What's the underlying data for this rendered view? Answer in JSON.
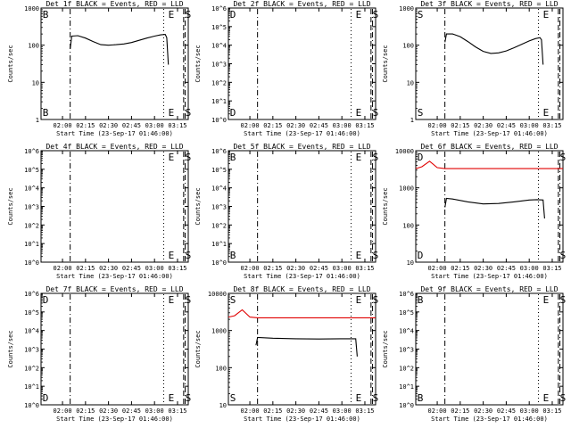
{
  "x_tick_labels": [
    "02:00",
    "02:15",
    "02:30",
    "02:45",
    "03:00",
    "03:15"
  ],
  "xlabel": "Start Time (23-Sep-17 01:46:00)",
  "ylabel": "Counts/sec",
  "colors": {
    "events": "#000000",
    "lld": "#e00000"
  },
  "chart_data": [
    {
      "type": "line",
      "title": "Det 1f BLACK = Events, RED = LLD",
      "ylog": true,
      "ylim": [
        1,
        1000
      ],
      "y_tick_labels": [
        "1000",
        "100",
        "10",
        "1"
      ],
      "markers": [
        {
          "label": "B",
          "x": "01:47"
        },
        {
          "label": "E",
          "x": "03:09"
        },
        {
          "label": "S",
          "x": "03:20"
        }
      ],
      "series": [
        {
          "color": "black",
          "x": [
            "02:05",
            "02:06",
            "02:10",
            "02:15",
            "02:20",
            "02:25",
            "02:30",
            "02:35",
            "02:40",
            "02:45",
            "02:50",
            "02:55",
            "03:00",
            "03:04",
            "03:07",
            "03:08",
            "03:09"
          ],
          "y": [
            80,
            175,
            180,
            155,
            125,
            103,
            100,
            103,
            108,
            118,
            135,
            155,
            175,
            190,
            195,
            160,
            30
          ]
        }
      ]
    },
    {
      "type": "line",
      "title": "Det 2f BLACK = Events, RED = LLD",
      "ylog": true,
      "ylim": [
        1,
        1000000
      ],
      "y_tick_labels": [
        "10^6",
        "10^5",
        "10^4",
        "10^3",
        "10^2",
        "10^1",
        "10^0"
      ],
      "markers": [
        {
          "label": "D",
          "x": "01:47"
        },
        {
          "label": "E",
          "x": "03:09"
        },
        {
          "label": "S",
          "x": "03:20"
        }
      ],
      "series": []
    },
    {
      "type": "line",
      "title": "Det 3f BLACK = Events, RED = LLD",
      "ylog": true,
      "ylim": [
        1,
        1000
      ],
      "y_tick_labels": [
        "1000",
        "100",
        "10",
        "1"
      ],
      "markers": [
        {
          "label": "S",
          "x": "01:47"
        },
        {
          "label": "E",
          "x": "03:09"
        }
      ],
      "series": [
        {
          "color": "black",
          "x": [
            "02:05",
            "02:06",
            "02:10",
            "02:15",
            "02:20",
            "02:25",
            "02:30",
            "02:35",
            "02:40",
            "02:45",
            "02:50",
            "02:55",
            "03:00",
            "03:04",
            "03:07",
            "03:08",
            "03:09"
          ],
          "y": [
            120,
            200,
            200,
            170,
            125,
            90,
            68,
            60,
            62,
            70,
            85,
            105,
            130,
            150,
            160,
            140,
            30
          ]
        }
      ]
    },
    {
      "type": "line",
      "title": "Det 4f BLACK = Events, RED = LLD",
      "ylog": true,
      "ylim": [
        1,
        1000000
      ],
      "y_tick_labels": [
        "10^6",
        "10^5",
        "10^4",
        "10^3",
        "10^2",
        "10^1",
        "10^0"
      ],
      "markers": [
        {
          "label": "E",
          "x": "03:09"
        },
        {
          "label": "S",
          "x": "03:20"
        }
      ],
      "series": []
    },
    {
      "type": "line",
      "title": "Det 5f BLACK = Events, RED = LLD",
      "ylog": true,
      "ylim": [
        1,
        1000000
      ],
      "y_tick_labels": [
        "10^6",
        "10^5",
        "10^4",
        "10^3",
        "10^2",
        "10^1",
        "10^0"
      ],
      "markers": [
        {
          "label": "B",
          "x": "01:47"
        },
        {
          "label": "E",
          "x": "03:09"
        },
        {
          "label": "S",
          "x": "03:20"
        }
      ],
      "series": []
    },
    {
      "type": "line",
      "title": "Det 6f BLACK = Events, RED = LLD",
      "ylog": true,
      "ylim": [
        10,
        10000
      ],
      "y_tick_labels": [
        "10000",
        "1000",
        "100",
        "10"
      ],
      "markers": [
        {
          "label": "D",
          "x": "01:47"
        },
        {
          "label": "S",
          "x": "03:20"
        }
      ],
      "series": [
        {
          "color": "red",
          "x": [
            "01:46",
            "01:50",
            "01:55",
            "02:00",
            "02:05",
            "02:10",
            "02:20",
            "02:40",
            "02:55",
            "03:10",
            "03:22"
          ],
          "y": [
            3300,
            3700,
            5200,
            3500,
            3300,
            3300,
            3300,
            3300,
            3300,
            3300,
            3300
          ]
        },
        {
          "color": "black",
          "x": [
            "02:05",
            "02:06",
            "02:10",
            "02:20",
            "02:30",
            "02:40",
            "02:50",
            "03:00",
            "03:05",
            "03:09",
            "03:10"
          ],
          "y": [
            300,
            520,
            500,
            420,
            370,
            380,
            420,
            470,
            480,
            470,
            150
          ]
        }
      ]
    },
    {
      "type": "line",
      "title": "Det 7f BLACK = Events, RED = LLD",
      "ylog": true,
      "ylim": [
        1,
        1000000
      ],
      "y_tick_labels": [
        "10^6",
        "10^5",
        "10^4",
        "10^3",
        "10^2",
        "10^1",
        "10^0"
      ],
      "markers": [
        {
          "label": "D",
          "x": "01:47"
        },
        {
          "label": "E",
          "x": "03:09"
        },
        {
          "label": "S",
          "x": "03:20"
        }
      ],
      "series": []
    },
    {
      "type": "line",
      "title": "Det 8f BLACK = Events, RED = LLD",
      "ylog": true,
      "ylim": [
        10,
        10000
      ],
      "y_tick_labels": [
        "10000",
        "1000",
        "100",
        "10"
      ],
      "markers": [
        {
          "label": "S",
          "x": "01:47"
        },
        {
          "label": "E",
          "x": "03:09"
        },
        {
          "label": "S",
          "x": "03:20"
        }
      ],
      "series": [
        {
          "color": "red",
          "x": [
            "01:46",
            "01:50",
            "01:55",
            "02:00",
            "02:05",
            "02:10",
            "02:30",
            "03:00",
            "03:22"
          ],
          "y": [
            2300,
            2500,
            3600,
            2300,
            2200,
            2200,
            2200,
            2200,
            2200
          ]
        },
        {
          "color": "black",
          "x": [
            "02:04",
            "02:05",
            "02:15",
            "02:30",
            "02:45",
            "03:00",
            "03:09",
            "03:10"
          ],
          "y": [
            400,
            650,
            620,
            600,
            590,
            600,
            600,
            200
          ]
        }
      ]
    },
    {
      "type": "line",
      "title": "Det 9f BLACK = Events, RED = LLD",
      "ylog": true,
      "ylim": [
        1,
        1000000
      ],
      "y_tick_labels": [
        "10^6",
        "10^5",
        "10^4",
        "10^3",
        "10^2",
        "10^1",
        "10^0"
      ],
      "markers": [
        {
          "label": "B",
          "x": "01:47"
        },
        {
          "label": "E",
          "x": "03:09"
        },
        {
          "label": "S",
          "x": "03:20"
        }
      ],
      "series": []
    }
  ]
}
